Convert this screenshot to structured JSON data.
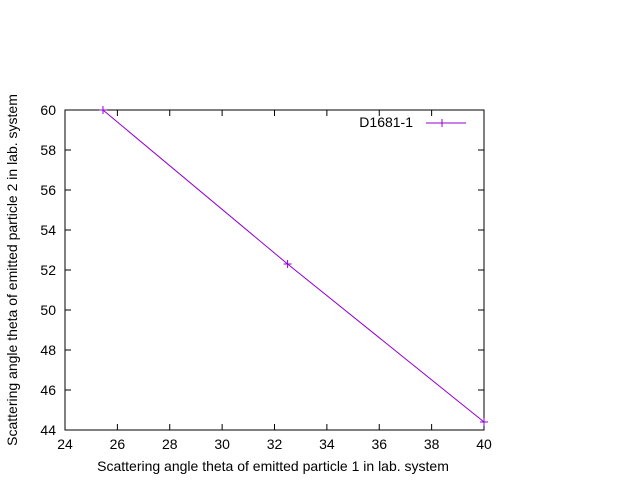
{
  "chart_data": {
    "type": "line",
    "title": "",
    "xlabel": "Scattering angle theta of emitted particle 1 in lab. system",
    "ylabel": "Scattering angle theta of emitted particle 2 in lab. system",
    "xlim": [
      24,
      40
    ],
    "ylim": [
      44,
      60
    ],
    "x_ticks": [
      24,
      26,
      28,
      30,
      32,
      34,
      36,
      38,
      40
    ],
    "y_ticks": [
      44,
      46,
      48,
      50,
      52,
      54,
      56,
      58,
      60
    ],
    "grid": false,
    "legend_position": "top-right",
    "series": [
      {
        "name": "D1681-1",
        "color": "#9400d3",
        "marker": "plus",
        "x": [
          25.45,
          32.5,
          40.0
        ],
        "y": [
          60.0,
          52.3,
          44.4
        ]
      }
    ]
  }
}
